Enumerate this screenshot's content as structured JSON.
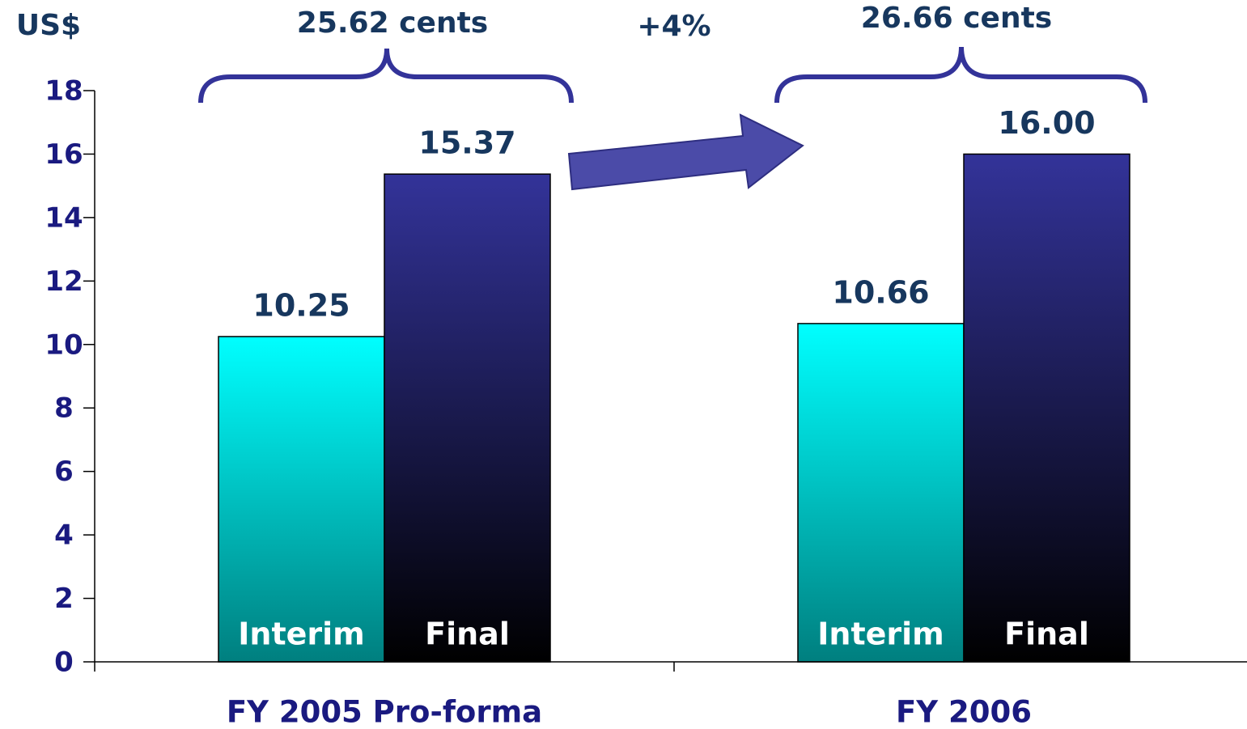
{
  "chart_data": {
    "type": "bar",
    "y_label": "US$",
    "annotations": [
      "25.62 cents",
      "+4%",
      "26.66 cents"
    ],
    "categories": [
      "FY 2005 Pro-forma",
      "FY 2006"
    ],
    "series": [
      {
        "name": "Interim",
        "color": "#00ffff",
        "values": [
          10.25,
          10.66
        ]
      },
      {
        "name": "Final",
        "color": "#333399",
        "values": [
          15.37,
          16.0
        ],
        "value_labels": [
          "15.37",
          "16.00"
        ]
      }
    ],
    "ylim": [
      0,
      18
    ],
    "yticks": [
      0,
      2,
      4,
      6,
      8,
      10,
      12,
      14,
      16,
      18
    ],
    "grid": false
  }
}
